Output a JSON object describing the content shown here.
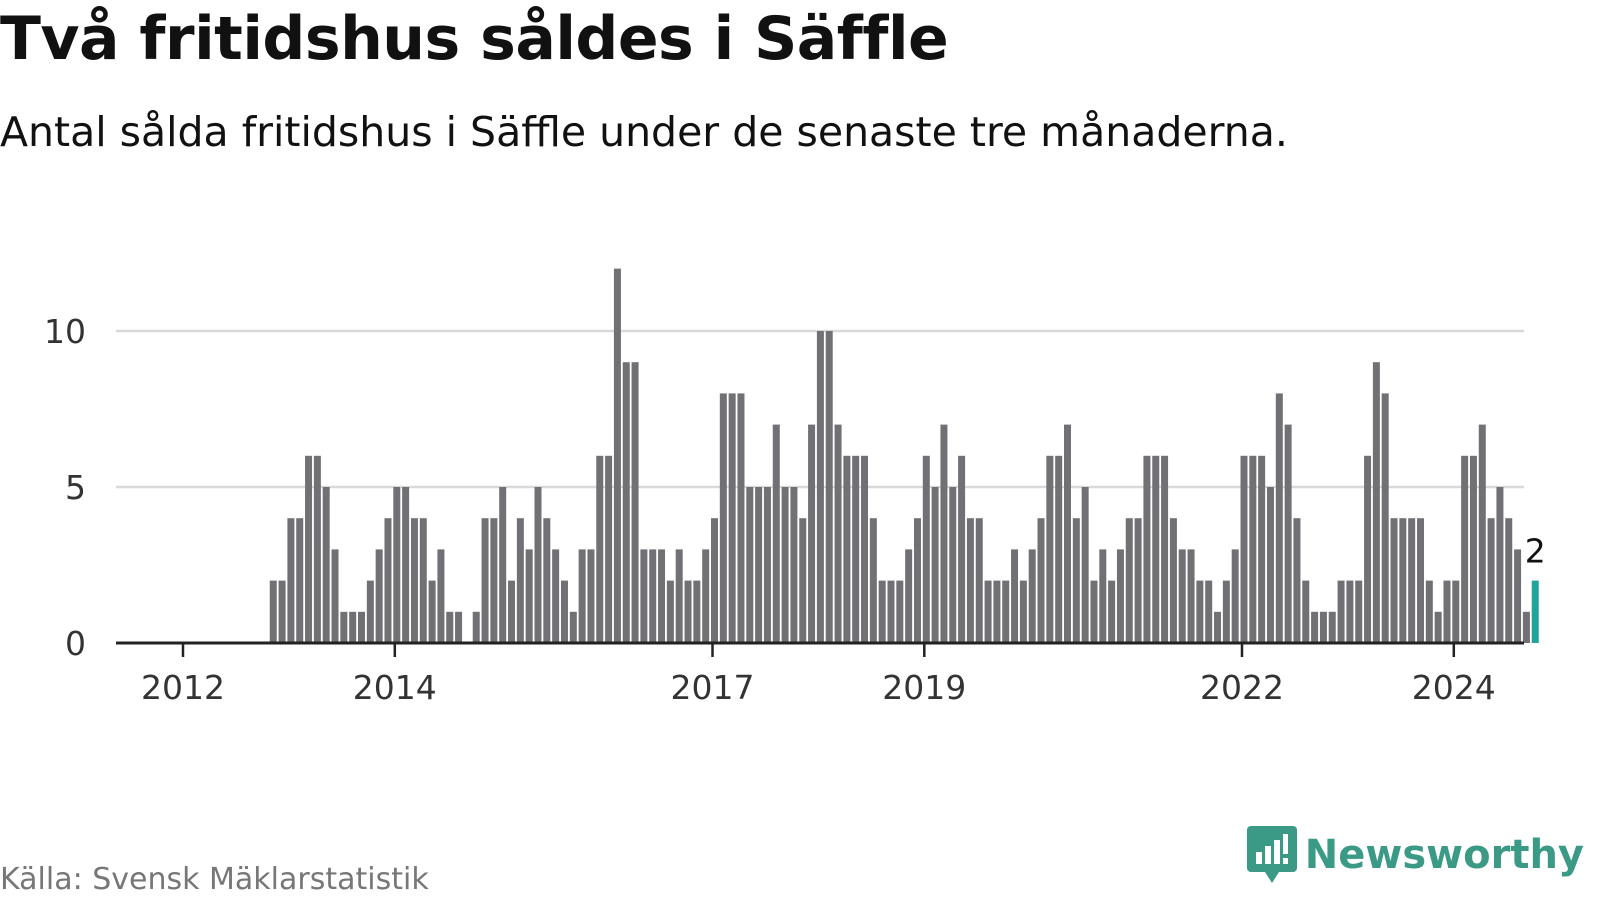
{
  "title": "Två fritidshus såldes i Säffle",
  "subtitle": "Antal sålda fritidshus i Säffle under de senaste tre månaderna.",
  "source": "Källa: Svensk Mäklarstatistik",
  "brand": "Newsworthy",
  "colors": {
    "bar": "#707075",
    "highlight": "#1fa39b",
    "grid": "#d9d9d9",
    "axis": "#222222",
    "brand": "#3a9a86"
  },
  "chart_data": {
    "type": "bar",
    "title": "Två fritidshus såldes i Säffle",
    "xlabel": "",
    "ylabel": "",
    "ylim": [
      0,
      12
    ],
    "yticks": [
      0,
      5,
      10
    ],
    "y_tick_labels": [
      "0",
      "5",
      "10"
    ],
    "x_ticks": [
      {
        "label": "2012",
        "index": 0
      },
      {
        "label": "2014",
        "index": 24
      },
      {
        "label": "2017",
        "index": 60
      },
      {
        "label": "2019",
        "index": 84
      },
      {
        "label": "2022",
        "index": 120
      },
      {
        "label": "2024",
        "index": 144
      }
    ],
    "start": "2012-01",
    "values": [
      0,
      0,
      0,
      0,
      0,
      0,
      0,
      0,
      0,
      0,
      2,
      2,
      4,
      4,
      6,
      6,
      5,
      3,
      1,
      1,
      1,
      2,
      3,
      4,
      5,
      5,
      4,
      4,
      2,
      3,
      1,
      1,
      0,
      1,
      4,
      4,
      5,
      2,
      4,
      3,
      5,
      4,
      3,
      2,
      1,
      3,
      3,
      6,
      6,
      12,
      9,
      9,
      3,
      3,
      3,
      2,
      3,
      2,
      2,
      3,
      4,
      8,
      8,
      8,
      5,
      5,
      5,
      7,
      5,
      5,
      4,
      7,
      10,
      10,
      7,
      6,
      6,
      6,
      4,
      2,
      2,
      2,
      3,
      4,
      6,
      5,
      7,
      5,
      6,
      4,
      4,
      2,
      2,
      2,
      3,
      2,
      3,
      4,
      6,
      6,
      7,
      4,
      5,
      2,
      3,
      2,
      3,
      4,
      4,
      6,
      6,
      6,
      4,
      3,
      3,
      2,
      2,
      1,
      2,
      3,
      6,
      6,
      6,
      5,
      8,
      7,
      4,
      2,
      1,
      1,
      1,
      2,
      2,
      2,
      6,
      9,
      8,
      4,
      4,
      4,
      4,
      2,
      1,
      2,
      2,
      6,
      6,
      7,
      4,
      5,
      4,
      3,
      1,
      2
    ],
    "highlight_last": true,
    "annotation": {
      "label": "2",
      "value": 2
    }
  }
}
